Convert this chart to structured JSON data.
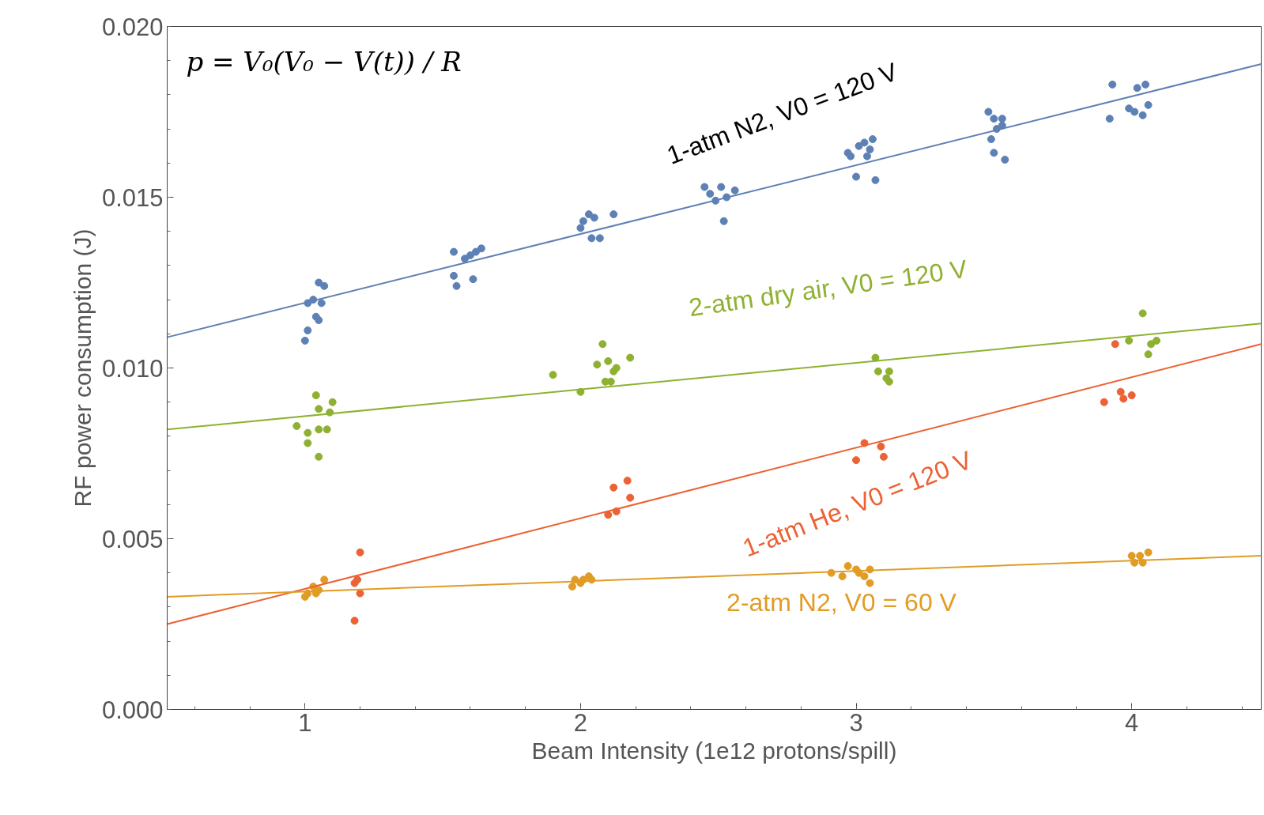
{
  "chart_data": {
    "type": "scatter",
    "xlabel": "Beam Intensity (1e12 protons/spill)",
    "ylabel": "RF power consumption (J)",
    "xlim": [
      0.5,
      4.47
    ],
    "ylim": [
      0,
      0.02
    ],
    "xticks": [
      1,
      2,
      3,
      4
    ],
    "yticks": [
      {
        "value": 0,
        "label": "0.000"
      },
      {
        "value": 0.005,
        "label": "0.005"
      },
      {
        "value": 0.01,
        "label": "0.010"
      },
      {
        "value": 0.015,
        "label": "0.015"
      },
      {
        "value": 0.02,
        "label": "0.020"
      }
    ],
    "grid": false,
    "annotations": [
      "p = V₀(V₀ − V(t)) / R"
    ],
    "series": [
      {
        "name": "1-atm N2, V0 = 120 V",
        "marker": "circle",
        "color": "#5e81b5",
        "x": [
          1.0,
          1.01,
          1.01,
          1.03,
          1.04,
          1.05,
          1.05,
          1.06,
          1.07,
          1.54,
          1.54,
          1.55,
          1.58,
          1.6,
          1.61,
          1.62,
          1.64,
          2.0,
          2.01,
          2.03,
          2.04,
          2.05,
          2.07,
          2.12,
          2.45,
          2.47,
          2.49,
          2.51,
          2.52,
          2.53,
          2.56,
          2.97,
          2.98,
          3.0,
          3.01,
          3.03,
          3.04,
          3.05,
          3.07,
          3.06,
          3.48,
          3.49,
          3.5,
          3.5,
          3.51,
          3.53,
          3.54,
          3.53,
          3.92,
          3.93,
          3.99,
          4.01,
          4.02,
          4.04,
          4.05,
          4.06
        ],
        "values": [
          0.0108,
          0.0111,
          0.0119,
          0.012,
          0.0115,
          0.0114,
          0.0125,
          0.0119,
          0.0124,
          0.0134,
          0.0127,
          0.0124,
          0.0132,
          0.0133,
          0.0126,
          0.0134,
          0.0135,
          0.0141,
          0.0143,
          0.0145,
          0.0138,
          0.0144,
          0.0138,
          0.0145,
          0.0153,
          0.0151,
          0.0149,
          0.0153,
          0.0143,
          0.015,
          0.0152,
          0.0163,
          0.0162,
          0.0156,
          0.0165,
          0.0166,
          0.0162,
          0.0164,
          0.0155,
          0.0167,
          0.0175,
          0.0167,
          0.0163,
          0.0173,
          0.017,
          0.0173,
          0.0161,
          0.0171,
          0.0173,
          0.0183,
          0.0176,
          0.0175,
          0.0182,
          0.0174,
          0.0183,
          0.0177
        ]
      },
      {
        "name": "2-atm dry air, V0 = 120 V",
        "marker": "circle",
        "color": "#8fb131",
        "x": [
          0.97,
          1.01,
          1.01,
          1.04,
          1.05,
          1.05,
          1.05,
          1.08,
          1.09,
          1.1,
          1.9,
          2.0,
          2.06,
          2.08,
          2.09,
          2.1,
          2.11,
          2.12,
          2.13,
          2.18,
          3.07,
          3.08,
          3.11,
          3.12,
          3.12,
          3.99,
          4.04,
          4.06,
          4.07,
          4.09
        ],
        "values": [
          0.0083,
          0.0081,
          0.0078,
          0.0092,
          0.0088,
          0.0082,
          0.0074,
          0.0082,
          0.0087,
          0.009,
          0.0098,
          0.0093,
          0.0101,
          0.0107,
          0.0096,
          0.0102,
          0.0096,
          0.0099,
          0.01,
          0.0103,
          0.0103,
          0.0099,
          0.0097,
          0.0099,
          0.0096,
          0.0108,
          0.0116,
          0.0104,
          0.0107,
          0.0108
        ]
      },
      {
        "name": "1-atm He, V0 = 120 V",
        "marker": "circle",
        "color": "#eb6235",
        "x": [
          1.18,
          1.18,
          1.19,
          1.2,
          1.2,
          2.1,
          2.12,
          2.13,
          2.17,
          2.18,
          3.0,
          3.03,
          3.09,
          3.1,
          3.9,
          3.94,
          3.96,
          3.97,
          4.0
        ],
        "values": [
          0.0026,
          0.0037,
          0.0038,
          0.0046,
          0.0034,
          0.0057,
          0.0065,
          0.0058,
          0.0067,
          0.0062,
          0.0073,
          0.0078,
          0.0077,
          0.0074,
          0.009,
          0.0107,
          0.0093,
          0.0091,
          0.0092
        ]
      },
      {
        "name": "2-atm N2, V0 = 60 V",
        "marker": "circle",
        "color": "#e19c24",
        "x": [
          1.0,
          1.01,
          1.03,
          1.04,
          1.05,
          1.07,
          1.97,
          1.98,
          2.0,
          2.01,
          2.03,
          2.04,
          2.91,
          2.95,
          2.97,
          3.0,
          3.01,
          3.03,
          3.05,
          3.05,
          4.0,
          4.01,
          4.03,
          4.04,
          4.06
        ],
        "values": [
          0.0033,
          0.0034,
          0.0036,
          0.0034,
          0.0035,
          0.0038,
          0.0036,
          0.0038,
          0.0037,
          0.0038,
          0.0039,
          0.0038,
          0.004,
          0.0039,
          0.0042,
          0.0041,
          0.004,
          0.0039,
          0.0041,
          0.0037,
          0.0045,
          0.0043,
          0.0045,
          0.0043,
          0.0046
        ]
      },
      {
        "type": "line",
        "marker": "none",
        "color": "#5e81b5",
        "x": [
          0.5,
          4.47
        ],
        "values": [
          0.0109,
          0.0189
        ]
      },
      {
        "type": "line",
        "marker": "none",
        "color": "#8fb131",
        "x": [
          0.5,
          4.47
        ],
        "values": [
          0.0082,
          0.0113
        ]
      },
      {
        "type": "line",
        "marker": "none",
        "color": "#eb6235",
        "x": [
          0.5,
          4.47
        ],
        "values": [
          0.0025,
          0.0107
        ]
      },
      {
        "type": "line",
        "marker": "none",
        "color": "#e19c24",
        "x": [
          0.5,
          4.47
        ],
        "values": [
          0.0033,
          0.0045
        ]
      }
    ]
  }
}
